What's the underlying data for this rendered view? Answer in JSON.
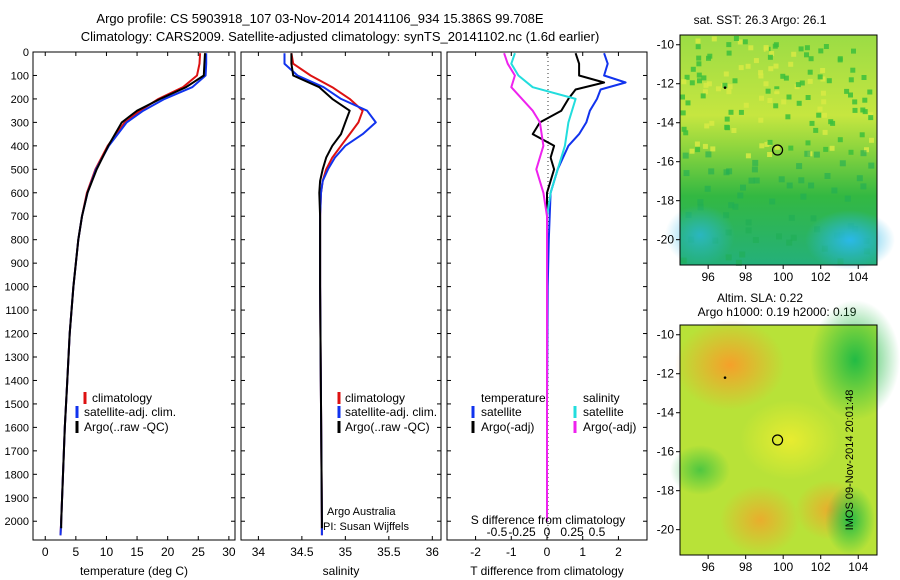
{
  "header": {
    "line1": "Argo profile: CS 5903918_107 03-Nov-2014 20141106_934 15.386S 99.708E",
    "line2": "Climatology: CARS2009. Satellite-adjusted climatology: synTS_20141102.nc (1.6d earlier)"
  },
  "side_label": "IMOS 09-Nov-2014 20:01:48",
  "credits": {
    "line1": "Argo Australia",
    "line2": "PI: Susan Wijffels"
  },
  "colors": {
    "climatology": "#dd1111",
    "satellite": "#1133ee",
    "argo": "#000000",
    "sal_satellite": "#22dddd",
    "sal_argo": "#ee22ee",
    "sst_bg": "#2fbf3a",
    "sla_bg": "#7fd83c"
  },
  "chart_data": [
    {
      "type": "line",
      "xlabel": "temperature (deg C)",
      "ylabel": "",
      "xlim": [
        -2,
        31
      ],
      "ylim": [
        2080,
        0
      ],
      "xticks": [
        0,
        5,
        10,
        15,
        20,
        25,
        30
      ],
      "yticks": [
        0,
        100,
        200,
        300,
        400,
        500,
        600,
        700,
        800,
        900,
        1000,
        1100,
        1200,
        1300,
        1400,
        1500,
        1600,
        1700,
        1800,
        1900,
        2000
      ],
      "legend": [
        "climatology",
        "satellite-adj. clim.",
        "Argo(..raw -QC)"
      ],
      "series": [
        {
          "name": "climatology",
          "color": "#dd1111",
          "depth": [
            5,
            50,
            100,
            150,
            200,
            250,
            300,
            400,
            500,
            600,
            700,
            800,
            1000,
            1200,
            1400,
            1600,
            1800,
            2000,
            2060
          ],
          "values": [
            25.3,
            25.2,
            24.8,
            22.5,
            18.5,
            15.5,
            13.0,
            10.2,
            8.2,
            6.8,
            6.0,
            5.4,
            4.6,
            4.0,
            3.6,
            3.2,
            2.9,
            2.6,
            2.5
          ]
        },
        {
          "name": "satellite-adj. clim.",
          "color": "#1133ee",
          "depth": [
            5,
            50,
            100,
            150,
            200,
            250,
            300,
            400,
            500,
            600,
            700,
            800,
            1000,
            1200,
            1400,
            1600,
            1800,
            2000,
            2060
          ],
          "values": [
            26.3,
            26.3,
            26.2,
            24.0,
            19.5,
            16.0,
            13.3,
            10.4,
            8.3,
            6.9,
            6.0,
            5.4,
            4.6,
            4.0,
            3.6,
            3.2,
            2.9,
            2.6,
            2.5
          ]
        },
        {
          "name": "Argo(..raw -QC)",
          "color": "#000000",
          "depth": [
            5,
            50,
            100,
            150,
            200,
            250,
            300,
            400,
            500,
            600,
            700,
            800,
            1000,
            1200,
            1400,
            1600,
            1800,
            2000,
            2030
          ],
          "values": [
            26.1,
            26.0,
            25.9,
            23.0,
            18.8,
            15.0,
            12.5,
            10.3,
            8.4,
            6.9,
            6.0,
            5.4,
            4.6,
            4.0,
            3.6,
            3.2,
            2.9,
            2.6,
            2.6
          ]
        }
      ]
    },
    {
      "type": "line",
      "xlabel": "salinity",
      "xlim": [
        33.8,
        36.1
      ],
      "ylim": [
        2080,
        0
      ],
      "xticks": [
        34,
        34.5,
        35,
        35.5,
        36
      ],
      "legend": [
        "climatology",
        "satellite-adj. clim.",
        "Argo(..raw -QC)"
      ],
      "series": [
        {
          "name": "climatology",
          "color": "#dd1111",
          "depth": [
            5,
            50,
            100,
            150,
            200,
            250,
            300,
            350,
            400,
            450,
            500,
            550,
            600,
            700,
            800,
            1000,
            1500,
            2000,
            2060
          ],
          "values": [
            34.38,
            34.4,
            34.6,
            34.85,
            35.05,
            35.2,
            35.15,
            35.05,
            34.95,
            34.85,
            34.78,
            34.74,
            34.72,
            34.71,
            34.71,
            34.71,
            34.72,
            34.73,
            34.73
          ]
        },
        {
          "name": "satellite-adj. clim.",
          "color": "#1133ee",
          "depth": [
            5,
            50,
            100,
            150,
            200,
            250,
            300,
            350,
            400,
            450,
            500,
            550,
            600,
            700,
            800,
            1000,
            1500,
            2000,
            2060
          ],
          "values": [
            34.3,
            34.3,
            34.45,
            34.75,
            34.95,
            35.25,
            35.35,
            35.2,
            35.0,
            34.88,
            34.8,
            34.74,
            34.72,
            34.71,
            34.71,
            34.71,
            34.72,
            34.73,
            34.73
          ]
        },
        {
          "name": "Argo(..raw -QC)",
          "color": "#000000",
          "depth": [
            5,
            50,
            100,
            150,
            200,
            250,
            300,
            350,
            400,
            450,
            500,
            550,
            600,
            700,
            800,
            1000,
            1500,
            2000,
            2030
          ],
          "values": [
            34.38,
            34.38,
            34.4,
            34.7,
            34.85,
            35.05,
            35.0,
            34.95,
            34.85,
            34.78,
            34.74,
            34.71,
            34.7,
            34.71,
            34.71,
            34.71,
            34.72,
            34.73,
            34.73
          ]
        }
      ]
    },
    {
      "type": "line",
      "xlabel": "T difference from climatology",
      "top_xlabel": "S difference from climatology",
      "xlim": [
        -2.8,
        2.8
      ],
      "ylim": [
        2080,
        0
      ],
      "xticks": [
        -2,
        -1,
        0,
        1,
        2
      ],
      "top_xticks_labels": [
        "-0.5",
        "-0.25",
        "0",
        "0.25",
        "0.5"
      ],
      "legend_title_t": "temperature",
      "legend_title_s": "salinity",
      "legend": [
        "satellite",
        "Argo(-adj)",
        "satellite",
        "Argo(-adj)"
      ],
      "series": [
        {
          "name": "satellite",
          "color": "#1133ee",
          "depth": [
            5,
            50,
            100,
            130,
            160,
            200,
            250,
            300,
            350,
            400,
            500,
            600,
            800,
            1000,
            1500,
            2000
          ],
          "values": [
            1.6,
            1.7,
            1.6,
            2.2,
            1.5,
            1.4,
            1.2,
            1.1,
            0.9,
            0.6,
            0.3,
            0.1,
            0.05,
            0.02,
            0.0,
            0.0
          ]
        },
        {
          "name": "Argo(-adj)",
          "color": "#000000",
          "depth": [
            5,
            50,
            100,
            130,
            160,
            200,
            250,
            300,
            350,
            400,
            450,
            500,
            600,
            800,
            1000,
            1500,
            2000
          ],
          "values": [
            0.8,
            0.9,
            0.9,
            1.6,
            0.8,
            0.6,
            0.4,
            -0.2,
            -0.4,
            0.2,
            0.1,
            0.2,
            0.0,
            0.0,
            0.0,
            0.0,
            0.0
          ]
        },
        {
          "name": "salinity satellite",
          "color": "#22dddd",
          "depth": [
            5,
            50,
            100,
            150,
            200,
            250,
            300,
            400,
            500,
            600,
            700,
            800,
            1000,
            1500,
            2000
          ],
          "values": [
            -0.9,
            -1.0,
            -0.8,
            -0.4,
            0.8,
            0.7,
            0.6,
            0.5,
            0.3,
            0.1,
            0.0,
            0.0,
            0.0,
            0.0,
            0.0
          ]
        },
        {
          "name": "salinity Argo(-adj)",
          "color": "#ee22ee",
          "depth": [
            5,
            50,
            100,
            150,
            200,
            250,
            300,
            400,
            500,
            600,
            700,
            800,
            1000,
            1500,
            2000
          ],
          "values": [
            -1.2,
            -1.1,
            -0.9,
            -1.0,
            -0.7,
            -0.4,
            -0.2,
            -0.1,
            -0.3,
            -0.1,
            0.0,
            0.0,
            0.0,
            0.0,
            0.0
          ]
        }
      ]
    },
    {
      "type": "heatmap",
      "title": "sat. SST: 26.3 Argo: 26.1",
      "xlim": [
        94.5,
        105
      ],
      "ylim": [
        -21.3,
        -9.5
      ],
      "xticks": [
        96,
        98,
        100,
        102,
        104
      ],
      "yticks": [
        -10,
        -12,
        -14,
        -16,
        -18,
        -20
      ],
      "markers": [
        {
          "lon": 99.7,
          "lat": -15.4,
          "kind": "circle"
        },
        {
          "lon": 96.9,
          "lat": -12.2,
          "kind": "dot"
        }
      ]
    },
    {
      "type": "heatmap",
      "title": "Altim. SLA: 0.22",
      "subtitle": "Argo h1000: 0.19 h2000: 0.19",
      "xlim": [
        94.5,
        105
      ],
      "ylim": [
        -21.3,
        -9.5
      ],
      "xticks": [
        96,
        98,
        100,
        102,
        104
      ],
      "yticks": [
        -10,
        -12,
        -14,
        -16,
        -18,
        -20
      ],
      "markers": [
        {
          "lon": 99.7,
          "lat": -15.4,
          "kind": "circle"
        },
        {
          "lon": 96.9,
          "lat": -12.2,
          "kind": "dot"
        }
      ]
    }
  ]
}
